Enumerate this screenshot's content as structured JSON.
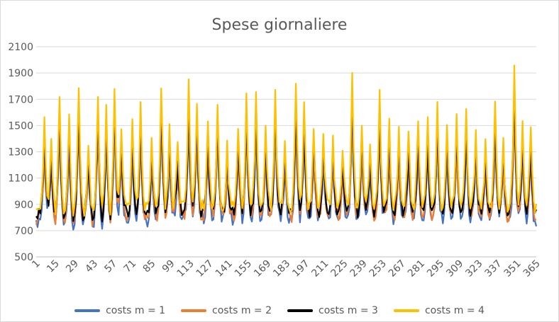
{
  "chart_data": {
    "type": "line",
    "title": "Spese giornaliere",
    "xlabel": "",
    "ylabel": "",
    "x": {
      "start": 1,
      "end": 365,
      "step": 1
    },
    "x_tick_labels": [
      "1",
      "15",
      "29",
      "43",
      "57",
      "71",
      "85",
      "99",
      "113",
      "127",
      "141",
      "155",
      "169",
      "183",
      "197",
      "211",
      "225",
      "239",
      "253",
      "267",
      "281",
      "295",
      "309",
      "323",
      "337",
      "351",
      "365"
    ],
    "ylim": [
      500,
      2100
    ],
    "y_ticks": [
      500,
      700,
      900,
      1100,
      1300,
      1500,
      1700,
      1900,
      2100
    ],
    "grid": "horizontal",
    "legend_position": "bottom",
    "peak_days": [
      7,
      12,
      18,
      25,
      32,
      39,
      46,
      52,
      58,
      63,
      71,
      77,
      85,
      92,
      98,
      104,
      112,
      118,
      126,
      133,
      140,
      148,
      154,
      161,
      168,
      175,
      182,
      190,
      196,
      203,
      210,
      217,
      224,
      231,
      238,
      244,
      251,
      258,
      265,
      272,
      279,
      286,
      293,
      300,
      307,
      314,
      321,
      328,
      335,
      341,
      349,
      355,
      361
    ],
    "peak_values": [
      1590,
      1380,
      1700,
      1520,
      1750,
      1330,
      1670,
      1600,
      1800,
      1510,
      1530,
      1700,
      1420,
      1830,
      1510,
      1400,
      1860,
      1700,
      1560,
      1720,
      1370,
      1500,
      1760,
      1790,
      1510,
      1800,
      1390,
      1820,
      1680,
      1540,
      1500,
      1440,
      1360,
      1890,
      1560,
      1420,
      1760,
      1540,
      1500,
      1520,
      1600,
      1580,
      1700,
      1560,
      1600,
      1650,
      1480,
      1400,
      1700,
      1400,
      1960,
      1520,
      1460
    ],
    "series": [
      {
        "name": "costs m = 1",
        "color": "#4472c4",
        "baseline": 760,
        "peak_scale": 0.86
      },
      {
        "name": "costs m = 2",
        "color": "#ed7d31",
        "baseline": 790,
        "peak_scale": 0.89
      },
      {
        "name": "costs m = 3",
        "color": "#000000",
        "baseline": 820,
        "peak_scale": 0.92
      },
      {
        "name": "costs m = 4",
        "color": "#ffc000",
        "baseline": 860,
        "peak_scale": 1.0
      }
    ]
  }
}
